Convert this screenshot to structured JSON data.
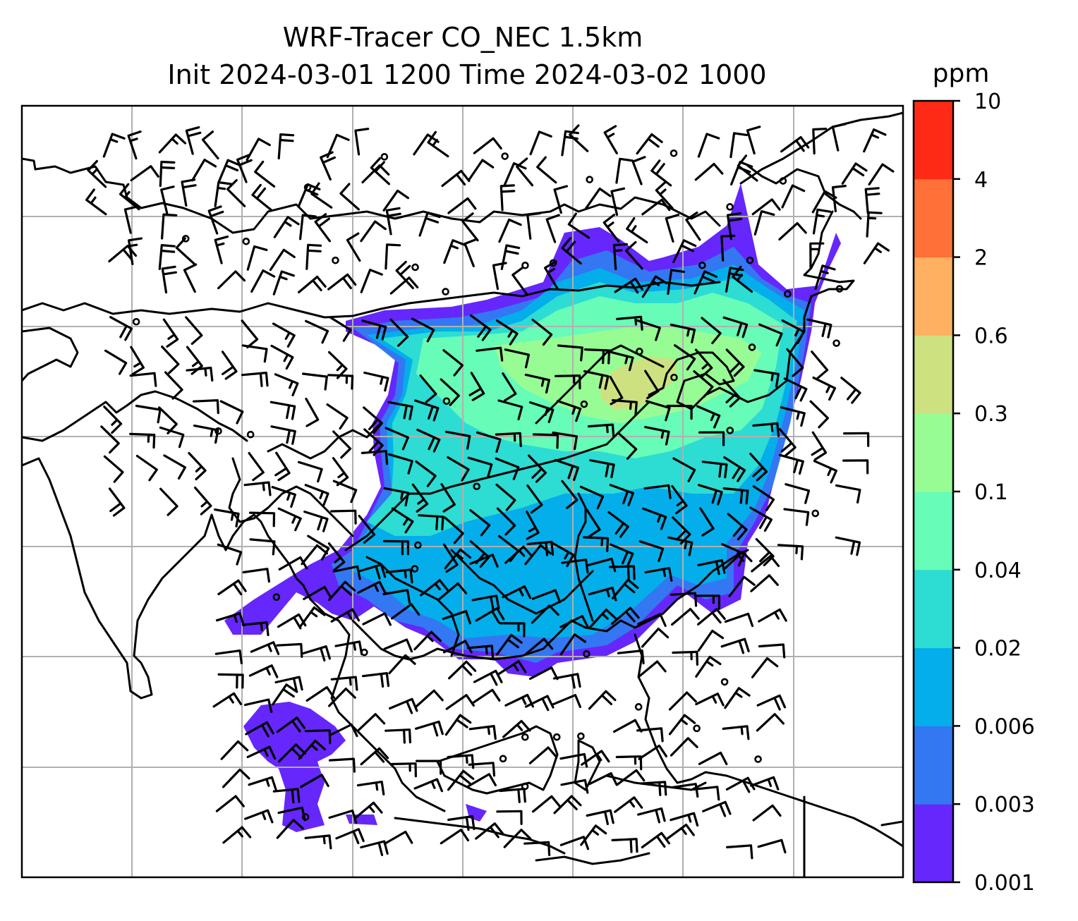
{
  "title": {
    "line1": "WRF-Tracer CO_NEC 1.5km",
    "line2": "Init 2024-03-01 1200 Time 2024-03-02 1000"
  },
  "colorbar": {
    "unit": "ppm",
    "labels": [
      "0.001",
      "0.003",
      "0.006",
      "0.02",
      "0.04",
      "0.1",
      "0.3",
      "0.6",
      "2",
      "4",
      "10"
    ],
    "colors": [
      "#6527fb",
      "#3377f2",
      "#04aeea",
      "#2ddcd3",
      "#67fcb7",
      "#98fc95",
      "#cde181",
      "#ffb060",
      "#ff7139",
      "#ff2a16"
    ]
  },
  "map": {
    "field": "CO_NEC tracer concentration",
    "overlay": "wind barbs",
    "grid": true
  }
}
